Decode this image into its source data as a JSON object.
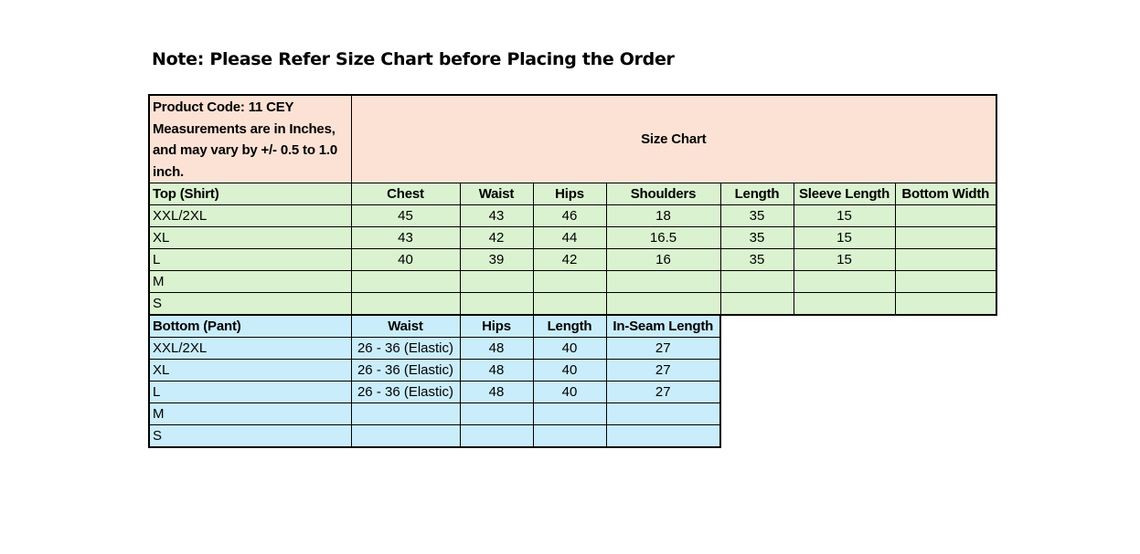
{
  "note": "Note: Please Refer Size Chart before Placing the Order",
  "info_lines": [
    "Product Code: 11 CEY",
    "Measurements are in Inches,",
    "and may vary by +/- 0.5 to 1.0",
    "inch."
  ],
  "size_chart_title": "Size Chart",
  "colors": {
    "header": "#FBE2D5",
    "top": "#DAF2D0",
    "bottom": "#CAEDFB"
  },
  "top": {
    "headers": [
      "Top (Shirt)",
      "Chest",
      "Waist",
      "Hips",
      "Shoulders",
      "Length",
      "Sleeve Length",
      "Bottom Width"
    ],
    "rows": [
      [
        "XXL/2XL",
        "45",
        "43",
        "46",
        "18",
        "35",
        "15",
        ""
      ],
      [
        "XL",
        "43",
        "42",
        "44",
        "16.5",
        "35",
        "15",
        ""
      ],
      [
        "L",
        "40",
        "39",
        "42",
        "16",
        "35",
        "15",
        ""
      ],
      [
        "M",
        "",
        "",
        "",
        "",
        "",
        "",
        ""
      ],
      [
        "S",
        "",
        "",
        "",
        "",
        "",
        "",
        ""
      ]
    ]
  },
  "bottom": {
    "headers": [
      "Bottom (Pant)",
      "Waist",
      "Hips",
      "Length",
      "In-Seam Length"
    ],
    "rows": [
      [
        "XXL/2XL",
        "26 - 36 (Elastic)",
        "48",
        "40",
        "27"
      ],
      [
        "XL",
        "26 - 36 (Elastic)",
        "48",
        "40",
        "27"
      ],
      [
        "L",
        "26 - 36 (Elastic)",
        "48",
        "40",
        "27"
      ],
      [
        "M",
        "",
        "",
        "",
        ""
      ],
      [
        "S",
        "",
        "",
        "",
        ""
      ]
    ]
  }
}
